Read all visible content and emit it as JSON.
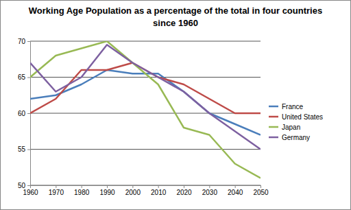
{
  "chart_data": {
    "type": "line",
    "title": "Working Age Population as a percentage of the total in four countries since 1960",
    "x": [
      1960,
      1970,
      1980,
      1990,
      2000,
      2010,
      2020,
      2030,
      2040,
      2050
    ],
    "xlim": [
      1960,
      2050
    ],
    "xticks": [
      1960,
      1970,
      1980,
      1990,
      2000,
      2010,
      2020,
      2030,
      2040,
      2050
    ],
    "ylim": [
      50,
      70
    ],
    "yticks": [
      50,
      55,
      60,
      65,
      70
    ],
    "grid": true,
    "legend": "right",
    "series": [
      {
        "name": "France",
        "color": "#4a7ebb",
        "values": [
          62,
          62.5,
          64,
          66,
          65.5,
          65.5,
          63,
          60,
          58.5,
          57
        ]
      },
      {
        "name": "United States",
        "color": "#be4b48",
        "values": [
          60,
          62,
          66,
          66,
          67,
          65,
          64,
          62,
          60,
          60
        ]
      },
      {
        "name": "Japan",
        "color": "#98b954",
        "values": [
          65,
          68,
          69,
          70,
          67,
          64,
          58,
          57,
          53,
          51
        ]
      },
      {
        "name": "Germany",
        "color": "#7d60a0",
        "values": [
          67,
          63,
          65,
          69.5,
          67,
          65,
          63,
          60,
          57.5,
          55
        ]
      }
    ]
  }
}
